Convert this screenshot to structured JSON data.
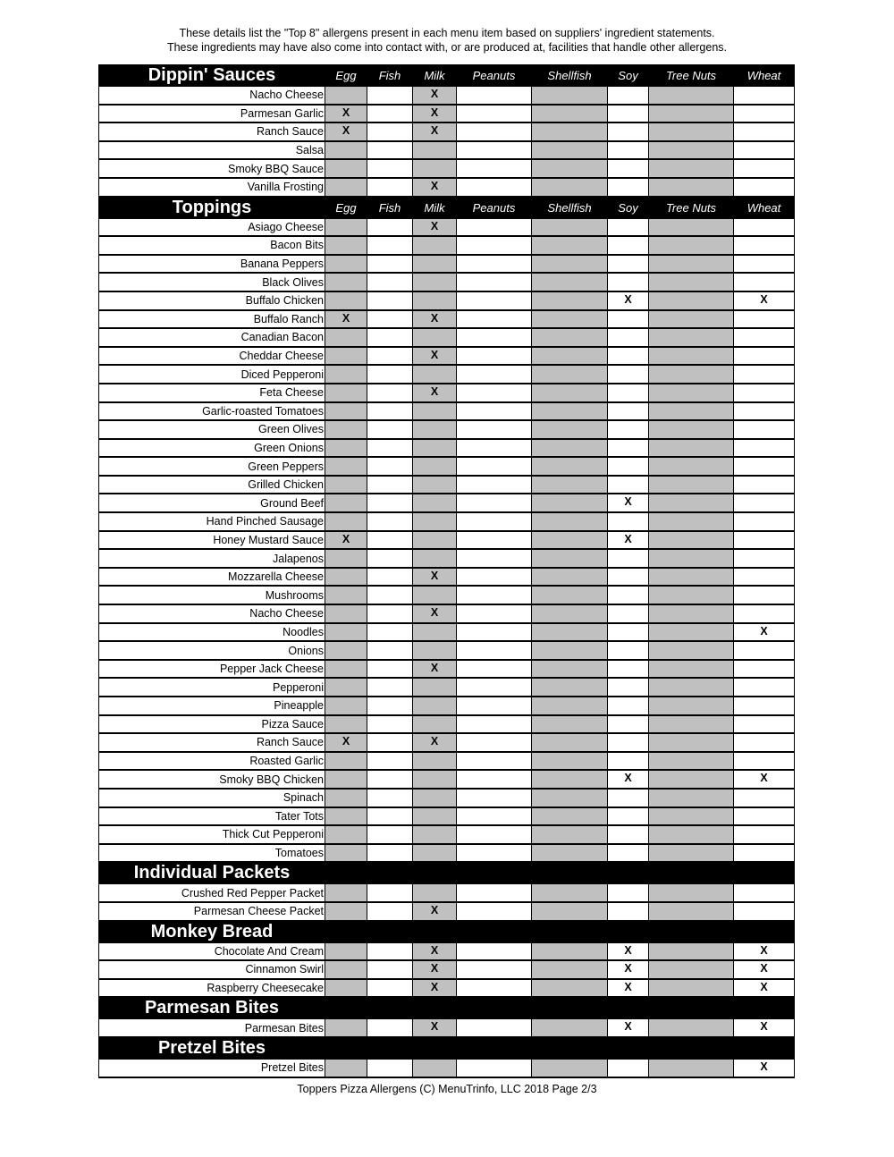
{
  "intro": {
    "line1": "These details list the \"Top 8\" allergens present in each menu item based on suppliers' ingredient statements.",
    "line2": "These ingredients may have also come into contact with, or are produced at, facilities that handle other allergens."
  },
  "columns": [
    "Egg",
    "Fish",
    "Milk",
    "Peanuts",
    "Shellfish",
    "Soy",
    "Tree Nuts",
    "Wheat"
  ],
  "gray_columns": [
    "Egg",
    "Milk",
    "Shellfish",
    "Tree Nuts"
  ],
  "mark": "X",
  "colors": {
    "header_bg": "#000000",
    "header_text": "#ffffff",
    "gray_cell": "#c0c0c0"
  },
  "sections": [
    {
      "title": "Dippin' Sauces",
      "show_columns": true,
      "items": [
        {
          "name": "Nacho Cheese",
          "allergens": [
            "Milk"
          ]
        },
        {
          "name": "Parmesan Garlic",
          "allergens": [
            "Egg",
            "Milk"
          ]
        },
        {
          "name": "Ranch Sauce",
          "allergens": [
            "Egg",
            "Milk"
          ]
        },
        {
          "name": "Salsa",
          "allergens": []
        },
        {
          "name": "Smoky BBQ Sauce",
          "allergens": []
        },
        {
          "name": "Vanilla Frosting",
          "allergens": [
            "Milk"
          ]
        }
      ]
    },
    {
      "title": "Toppings",
      "show_columns": true,
      "items": [
        {
          "name": "Asiago Cheese",
          "allergens": [
            "Milk"
          ]
        },
        {
          "name": "Bacon Bits",
          "allergens": []
        },
        {
          "name": "Banana Peppers",
          "allergens": []
        },
        {
          "name": "Black Olives",
          "allergens": []
        },
        {
          "name": "Buffalo Chicken",
          "allergens": [
            "Soy",
            "Wheat"
          ]
        },
        {
          "name": "Buffalo Ranch",
          "allergens": [
            "Egg",
            "Milk"
          ]
        },
        {
          "name": "Canadian Bacon",
          "allergens": []
        },
        {
          "name": "Cheddar Cheese",
          "allergens": [
            "Milk"
          ]
        },
        {
          "name": "Diced Pepperoni",
          "allergens": []
        },
        {
          "name": "Feta Cheese",
          "allergens": [
            "Milk"
          ]
        },
        {
          "name": "Garlic-roasted Tomatoes",
          "allergens": []
        },
        {
          "name": "Green Olives",
          "allergens": []
        },
        {
          "name": "Green Onions",
          "allergens": []
        },
        {
          "name": "Green Peppers",
          "allergens": []
        },
        {
          "name": "Grilled Chicken",
          "allergens": []
        },
        {
          "name": "Ground Beef",
          "allergens": [
            "Soy"
          ]
        },
        {
          "name": "Hand Pinched Sausage",
          "allergens": []
        },
        {
          "name": "Honey Mustard Sauce",
          "allergens": [
            "Egg",
            "Soy"
          ]
        },
        {
          "name": "Jalapenos",
          "allergens": []
        },
        {
          "name": "Mozzarella Cheese",
          "allergens": [
            "Milk"
          ]
        },
        {
          "name": "Mushrooms",
          "allergens": []
        },
        {
          "name": "Nacho Cheese",
          "allergens": [
            "Milk"
          ]
        },
        {
          "name": "Noodles",
          "allergens": [
            "Wheat"
          ]
        },
        {
          "name": "Onions",
          "allergens": []
        },
        {
          "name": "Pepper Jack Cheese",
          "allergens": [
            "Milk"
          ]
        },
        {
          "name": "Pepperoni",
          "allergens": []
        },
        {
          "name": "Pineapple",
          "allergens": []
        },
        {
          "name": "Pizza Sauce",
          "allergens": []
        },
        {
          "name": "Ranch Sauce",
          "allergens": [
            "Egg",
            "Milk"
          ]
        },
        {
          "name": "Roasted Garlic",
          "allergens": []
        },
        {
          "name": "Smoky BBQ Chicken",
          "allergens": [
            "Soy",
            "Wheat"
          ]
        },
        {
          "name": "Spinach",
          "allergens": []
        },
        {
          "name": "Tater Tots",
          "allergens": []
        },
        {
          "name": "Thick Cut Pepperoni",
          "allergens": []
        },
        {
          "name": "Tomatoes",
          "allergens": []
        }
      ]
    },
    {
      "title": "Individual Packets",
      "show_columns": false,
      "items": [
        {
          "name": "Crushed Red Pepper Packet",
          "allergens": []
        },
        {
          "name": "Parmesan Cheese Packet",
          "allergens": [
            "Milk"
          ]
        }
      ]
    },
    {
      "title": "Monkey Bread",
      "show_columns": false,
      "items": [
        {
          "name": "Chocolate And Cream",
          "allergens": [
            "Milk",
            "Soy",
            "Wheat"
          ]
        },
        {
          "name": "Cinnamon Swirl",
          "allergens": [
            "Milk",
            "Soy",
            "Wheat"
          ]
        },
        {
          "name": "Raspberry Cheesecake",
          "allergens": [
            "Milk",
            "Soy",
            "Wheat"
          ]
        }
      ]
    },
    {
      "title": "Parmesan Bites",
      "show_columns": false,
      "items": [
        {
          "name": "Parmesan Bites",
          "allergens": [
            "Milk",
            "Soy",
            "Wheat"
          ]
        }
      ]
    },
    {
      "title": "Pretzel Bites",
      "show_columns": false,
      "items": [
        {
          "name": "Pretzel Bites",
          "allergens": [
            "Wheat"
          ]
        }
      ]
    }
  ],
  "footer": "Toppers Pizza Allergens (C) MenuTrinfo, LLC 2018 Page 2/3"
}
